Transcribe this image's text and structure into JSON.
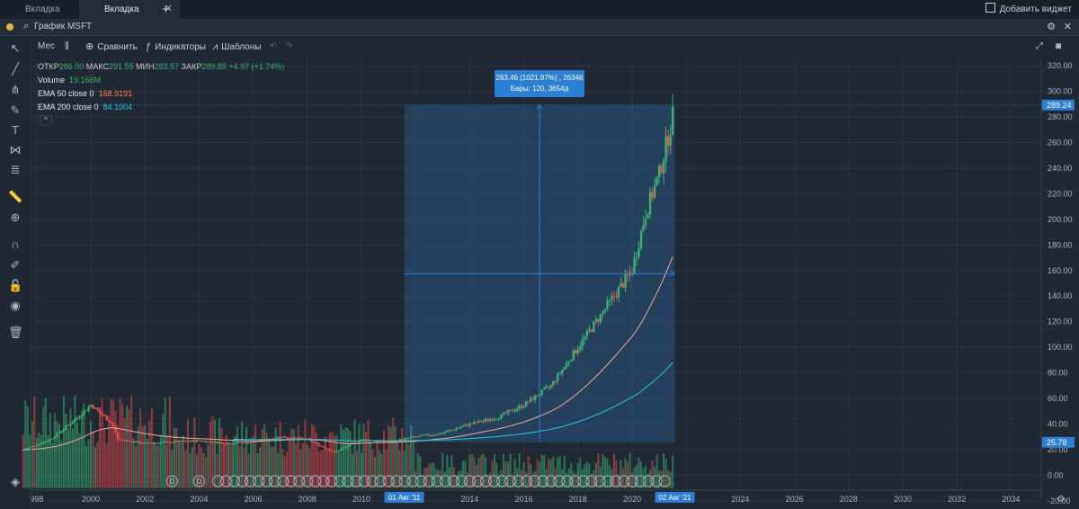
{
  "tabs": [
    {
      "label": "Вкладка",
      "active": false
    },
    {
      "label": "Вкладка",
      "active": true
    }
  ],
  "add_tab_label": "+",
  "add_widget_label": "Добавить виджет",
  "chart_title": "График MSFT",
  "toolbar": {
    "interval": "Мес",
    "compare": "Сравнить",
    "indicators": "Индикаторы",
    "templates": "Шаблоны"
  },
  "ohlc": {
    "open_label": "ОТКР",
    "open": "286.00",
    "high_label": "МАКС",
    "high": "291.55",
    "low_label": "МИН",
    "low": "283.57",
    "close_label": "ЗАКР",
    "close": "289.88",
    "change": "+4.97 (+1.74%)"
  },
  "indicators": [
    {
      "label": "Volume",
      "value": "19.166M",
      "color": "#3bb273"
    },
    {
      "label": "EMA 50 close 0",
      "value": "168.9191",
      "color": "#ff7f5c"
    },
    {
      "label": "EMA 200 close 0",
      "value": "84.1004",
      "color": "#26c6da"
    }
  ],
  "measure_tooltip": {
    "line1": "263.46 (1021.97%) , 26346",
    "line2": "Бары: 120, 3654д"
  },
  "price_axis": {
    "ticks": [
      "320.00",
      "300.00",
      "280.00",
      "260.00",
      "240.00",
      "220.00",
      "200.00",
      "180.00",
      "160.00",
      "140.00",
      "120.00",
      "100.00",
      "80.00",
      "60.00",
      "40.00",
      "20.00",
      "0.00",
      "-20.00"
    ],
    "last_price": "289.24",
    "range_low": "25.78"
  },
  "time_axis": {
    "ticks": [
      "998",
      "2000",
      "2002",
      "2004",
      "2006",
      "2008",
      "2010",
      "2014",
      "2016",
      "2018",
      "2020",
      "2024",
      "2026",
      "2028",
      "2030",
      "2032",
      "2034"
    ],
    "range_start": "01 Авг '11",
    "range_end": "02 Авг '21"
  },
  "dividend_marker": "D",
  "colors": {
    "up": "#3bb273",
    "down": "#ef4b4b",
    "ema50": "#f3a7a0",
    "ema200": "#26c6da",
    "accent": "#2b7fd4",
    "range_fill": "#2a5d8f"
  }
}
